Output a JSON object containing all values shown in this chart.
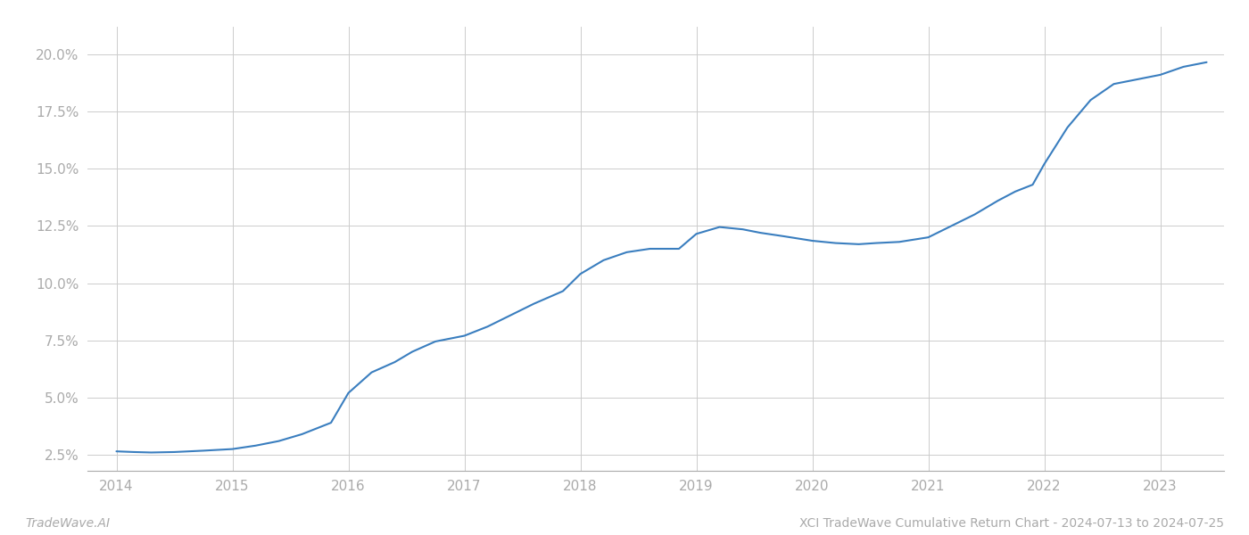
{
  "title": "",
  "footer_left": "TradeWave.AI",
  "footer_right": "XCI TradeWave Cumulative Return Chart - 2024-07-13 to 2024-07-25",
  "line_color": "#3a7ebf",
  "line_width": 1.5,
  "background_color": "#ffffff",
  "grid_color": "#cccccc",
  "x_values": [
    2014.0,
    2014.15,
    2014.3,
    2014.5,
    2014.75,
    2015.0,
    2015.2,
    2015.4,
    2015.6,
    2015.85,
    2016.0,
    2016.2,
    2016.4,
    2016.55,
    2016.75,
    2017.0,
    2017.2,
    2017.4,
    2017.6,
    2017.85,
    2018.0,
    2018.2,
    2018.4,
    2018.6,
    2018.85,
    2019.0,
    2019.2,
    2019.4,
    2019.55,
    2019.75,
    2020.0,
    2020.2,
    2020.4,
    2020.55,
    2020.75,
    2021.0,
    2021.2,
    2021.4,
    2021.6,
    2021.75,
    2021.9,
    2022.0,
    2022.2,
    2022.4,
    2022.6,
    2022.8,
    2023.0,
    2023.2,
    2023.4
  ],
  "y_values": [
    2.65,
    2.62,
    2.6,
    2.62,
    2.68,
    2.75,
    2.9,
    3.1,
    3.4,
    3.9,
    5.2,
    6.1,
    6.55,
    7.0,
    7.45,
    7.7,
    8.1,
    8.6,
    9.1,
    9.65,
    10.4,
    11.0,
    11.35,
    11.5,
    11.5,
    12.15,
    12.45,
    12.35,
    12.2,
    12.05,
    11.85,
    11.75,
    11.7,
    11.75,
    11.8,
    12.0,
    12.5,
    13.0,
    13.6,
    14.0,
    14.3,
    15.2,
    16.8,
    18.0,
    18.7,
    18.9,
    19.1,
    19.45,
    19.65
  ],
  "yticks": [
    2.5,
    5.0,
    7.5,
    10.0,
    12.5,
    15.0,
    17.5,
    20.0
  ],
  "ytick_labels": [
    "2.5%",
    "5.0%",
    "7.5%",
    "10.0%",
    "12.5%",
    "15.0%",
    "17.5%",
    "20.0%"
  ],
  "xticks": [
    2014,
    2015,
    2016,
    2017,
    2018,
    2019,
    2020,
    2021,
    2022,
    2023
  ],
  "xlim": [
    2013.75,
    2023.55
  ],
  "ylim": [
    1.8,
    21.2
  ],
  "label_color": "#aaaaaa",
  "footer_font_size": 10,
  "tick_font_size": 11
}
